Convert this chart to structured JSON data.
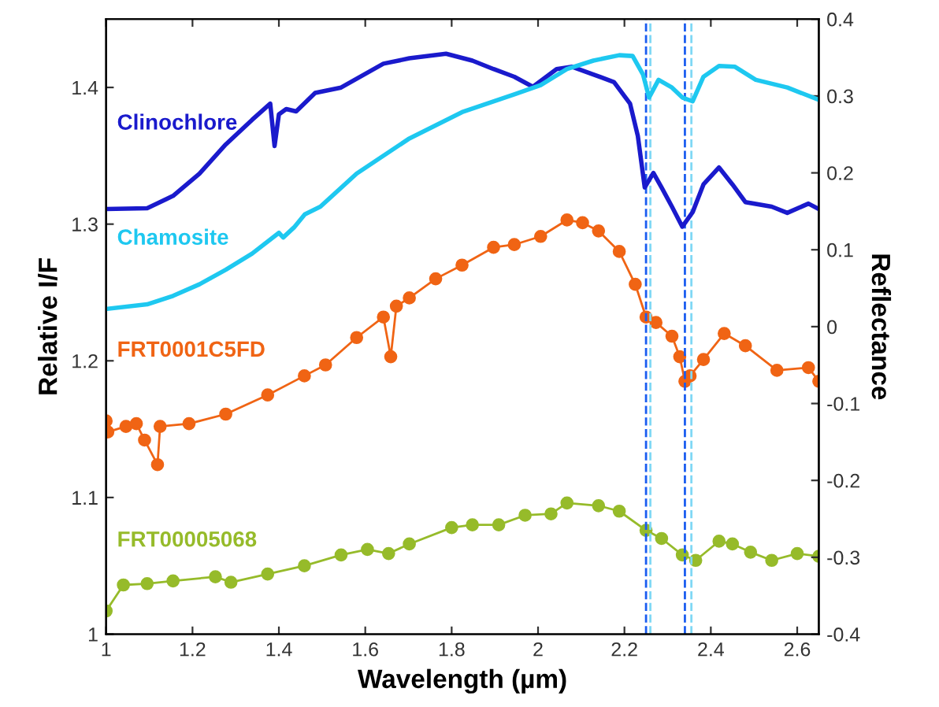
{
  "chart_data": {
    "type": "line",
    "xlabel": "Wavelength (µm)",
    "ylabel": "Relative I/F",
    "y2label": "Reflectance",
    "xlim": [
      1,
      2.65
    ],
    "xticks": [
      1,
      1.2,
      1.4,
      1.6,
      1.8,
      2,
      2.2,
      2.4,
      2.6
    ],
    "ylim": [
      1,
      1.45
    ],
    "yticks": [
      1,
      1.1,
      1.2,
      1.3,
      1.4
    ],
    "y2lim": [
      -0.4,
      0.4
    ],
    "y2ticks": [
      -0.4,
      -0.3,
      -0.2,
      -0.1,
      0,
      0.1,
      0.2,
      0.3,
      0.4
    ],
    "legend": false,
    "grid": false,
    "series": [
      {
        "name": "Clinochlore",
        "color": "#1a1acc",
        "axis": "y2",
        "marker": "none",
        "x": [
          1.0,
          1.095,
          1.155,
          1.216,
          1.277,
          1.338,
          1.38,
          1.39,
          1.4,
          1.417,
          1.44,
          1.484,
          1.544,
          1.642,
          1.702,
          1.787,
          1.848,
          1.897,
          1.945,
          1.988,
          2.043,
          2.079,
          2.128,
          2.176,
          2.213,
          2.231,
          2.247,
          2.267,
          2.286,
          2.31,
          2.334,
          2.358,
          2.383,
          2.419,
          2.45,
          2.48,
          2.541,
          2.577,
          2.626,
          2.65
        ],
        "values": [
          0.153,
          0.154,
          0.17,
          0.199,
          0.237,
          0.269,
          0.29,
          0.235,
          0.276,
          0.283,
          0.28,
          0.304,
          0.311,
          0.342,
          0.349,
          0.355,
          0.346,
          0.335,
          0.325,
          0.312,
          0.335,
          0.338,
          0.328,
          0.318,
          0.29,
          0.248,
          0.181,
          0.2,
          0.181,
          0.156,
          0.13,
          0.149,
          0.185,
          0.207,
          0.185,
          0.162,
          0.156,
          0.148,
          0.16,
          0.153
        ]
      },
      {
        "name": "Chamosite",
        "color": "#1ec8f0",
        "axis": "y2",
        "marker": "none",
        "x": [
          1.0,
          1.095,
          1.155,
          1.216,
          1.277,
          1.338,
          1.4,
          1.41,
          1.435,
          1.46,
          1.496,
          1.58,
          1.7,
          1.824,
          1.945,
          2.006,
          2.067,
          2.128,
          2.188,
          2.219,
          2.243,
          2.257,
          2.279,
          2.31,
          2.334,
          2.358,
          2.383,
          2.419,
          2.456,
          2.504,
          2.577,
          2.65
        ],
        "values": [
          0.023,
          0.029,
          0.04,
          0.055,
          0.074,
          0.095,
          0.122,
          0.116,
          0.129,
          0.146,
          0.156,
          0.199,
          0.244,
          0.279,
          0.302,
          0.314,
          0.335,
          0.346,
          0.353,
          0.352,
          0.328,
          0.298,
          0.321,
          0.311,
          0.298,
          0.293,
          0.325,
          0.339,
          0.338,
          0.321,
          0.311,
          0.295
        ]
      },
      {
        "name": "FRT0001C5FD",
        "color": "#f06414",
        "marker": "circle",
        "x": [
          1.0,
          1.004,
          1.046,
          1.07,
          1.089,
          1.119,
          1.125,
          1.192,
          1.277,
          1.374,
          1.459,
          1.508,
          1.58,
          1.642,
          1.659,
          1.672,
          1.702,
          1.763,
          1.824,
          1.897,
          1.945,
          2.006,
          2.067,
          2.103,
          2.14,
          2.188,
          2.225,
          2.25,
          2.273,
          2.31,
          2.328,
          2.34,
          2.352,
          2.383,
          2.431,
          2.48,
          2.553,
          2.626,
          2.65
        ],
        "values": [
          1.156,
          1.148,
          1.152,
          1.154,
          1.142,
          1.124,
          1.152,
          1.154,
          1.161,
          1.175,
          1.189,
          1.197,
          1.217,
          1.232,
          1.203,
          1.24,
          1.246,
          1.26,
          1.27,
          1.283,
          1.285,
          1.291,
          1.303,
          1.301,
          1.295,
          1.28,
          1.256,
          1.232,
          1.228,
          1.218,
          1.203,
          1.185,
          1.189,
          1.201,
          1.22,
          1.211,
          1.193,
          1.195,
          1.185
        ]
      },
      {
        "name": "FRT00005068",
        "color": "#96bb2a",
        "marker": "circle",
        "x": [
          1.0,
          1.04,
          1.095,
          1.155,
          1.253,
          1.289,
          1.374,
          1.459,
          1.544,
          1.605,
          1.654,
          1.702,
          1.8,
          1.848,
          1.909,
          1.97,
          2.03,
          2.067,
          2.14,
          2.188,
          2.25,
          2.286,
          2.334,
          2.365,
          2.419,
          2.45,
          2.492,
          2.541,
          2.6,
          2.65
        ],
        "values": [
          1.017,
          1.036,
          1.037,
          1.039,
          1.042,
          1.038,
          1.044,
          1.05,
          1.058,
          1.062,
          1.059,
          1.066,
          1.078,
          1.08,
          1.08,
          1.087,
          1.088,
          1.096,
          1.094,
          1.09,
          1.076,
          1.07,
          1.058,
          1.054,
          1.068,
          1.066,
          1.06,
          1.054,
          1.059,
          1.057
        ]
      }
    ],
    "ref_lines": [
      {
        "axis": "x",
        "value": 2.25,
        "color": "#1a5cf0",
        "line_style": "dashed"
      },
      {
        "axis": "x",
        "value": 2.26,
        "color": "#7fd8f5",
        "line_style": "dashed"
      },
      {
        "axis": "x",
        "value": 2.34,
        "color": "#1a5cf0",
        "line_style": "dashed"
      },
      {
        "axis": "x",
        "value": 2.355,
        "color": "#7fd8f5",
        "line_style": "dashed"
      }
    ]
  }
}
